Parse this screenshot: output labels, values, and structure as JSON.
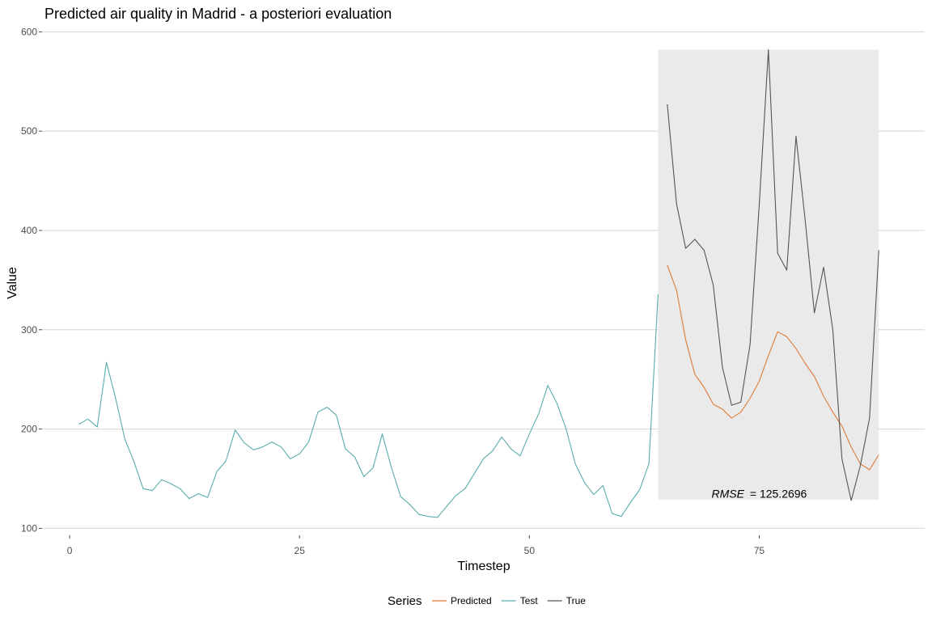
{
  "chart_data": {
    "type": "line",
    "title": "Predicted air quality in Madrid - a posteriori evaluation",
    "xlabel": "Timestep",
    "ylabel": "Value",
    "xlim": [
      -3,
      93
    ],
    "ylim": [
      93,
      606
    ],
    "xticks": [
      0,
      25,
      50,
      75
    ],
    "yticks": [
      100,
      200,
      300,
      400,
      500,
      600
    ],
    "grid": "horizontal",
    "legend": {
      "title": "Series",
      "position": "bottom"
    },
    "shaded_region": {
      "x": [
        64,
        88
      ],
      "y": [
        129,
        582
      ],
      "color": "#e9eae9"
    },
    "annotation": {
      "label": "RMSE",
      "value": "= 125.2696",
      "x": 75,
      "y": 131
    },
    "series": [
      {
        "name": "Predicted",
        "color": "#e07b39",
        "x": [
          65,
          66,
          67,
          68,
          69,
          70,
          71,
          72,
          73,
          74,
          75,
          76,
          77,
          78,
          79,
          80,
          81,
          82,
          83,
          84,
          85,
          86,
          87,
          88
        ],
        "values": [
          365,
          340,
          290,
          255,
          242,
          225,
          220,
          211,
          217,
          231,
          248,
          274,
          298,
          293,
          281,
          266,
          253,
          233,
          217,
          203,
          182,
          165,
          159,
          174
        ]
      },
      {
        "name": "Test",
        "color": "#5aacac",
        "x": [
          1,
          2,
          3,
          4,
          5,
          6,
          7,
          8,
          9,
          10,
          11,
          12,
          13,
          14,
          15,
          16,
          17,
          18,
          19,
          20,
          21,
          22,
          23,
          24,
          25,
          26,
          27,
          28,
          29,
          30,
          31,
          32,
          33,
          34,
          35,
          36,
          37,
          38,
          39,
          40,
          41,
          42,
          43,
          44,
          45,
          46,
          47,
          48,
          49,
          50,
          51,
          52,
          53,
          54,
          55,
          56,
          57,
          58,
          59,
          60,
          61,
          62,
          63,
          64
        ],
        "values": [
          205,
          210,
          202,
          267,
          231,
          190,
          167,
          140,
          138,
          149,
          145,
          140,
          130,
          135,
          131,
          157,
          168,
          199,
          186,
          179,
          182,
          187,
          182,
          170,
          175,
          187,
          217,
          222,
          214,
          180,
          172,
          152,
          161,
          195,
          161,
          132,
          124,
          114,
          112,
          111,
          122,
          133,
          140,
          155,
          170,
          178,
          192,
          180,
          173,
          195,
          215,
          244,
          226,
          200,
          165,
          146,
          134,
          143,
          115,
          112,
          126,
          139,
          165,
          336
        ]
      },
      {
        "name": "True",
        "color": "#555555",
        "x": [
          65,
          66,
          67,
          68,
          69,
          70,
          71,
          72,
          73,
          74,
          75,
          76,
          77,
          78,
          79,
          80,
          81,
          82,
          83,
          84,
          85,
          86,
          87,
          88
        ],
        "values": [
          527,
          427,
          382,
          391,
          380,
          345,
          262,
          224,
          227,
          285,
          425,
          582,
          377,
          360,
          495,
          410,
          317,
          363,
          300,
          170,
          128,
          163,
          211,
          380
        ]
      }
    ]
  }
}
